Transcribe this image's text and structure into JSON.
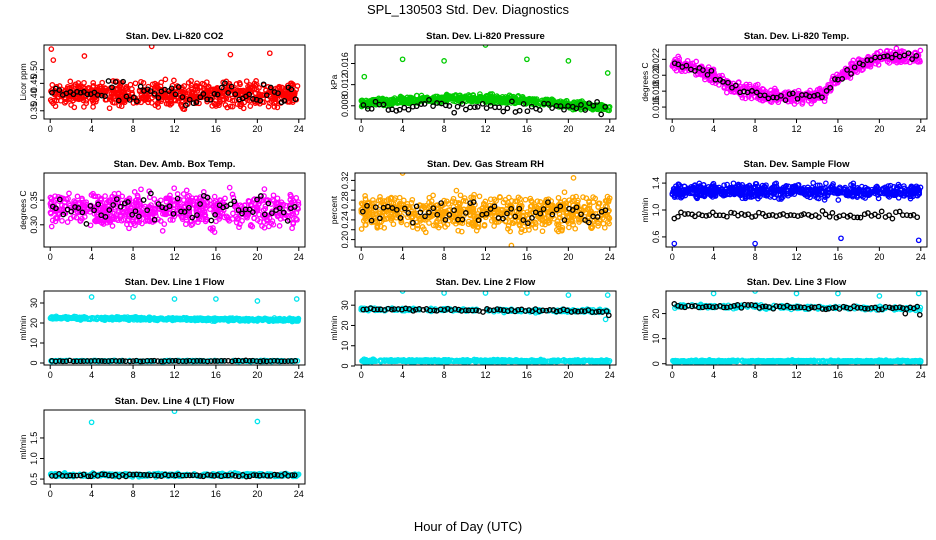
{
  "page": {
    "title": "SPL_130503  Std. Dev. Diagnostics",
    "x_title": "Hour of Day (UTC)"
  },
  "chart_data": [
    {
      "type": "scatter",
      "title": "Stan. Dev. Li-820 CO2",
      "ylabel": "Licor ppm",
      "xlim": [
        -0.6,
        24.6
      ],
      "ylim": [
        0.32,
        0.59
      ],
      "xticks": [
        0,
        4,
        8,
        12,
        16,
        20,
        24
      ],
      "yticks": [
        0.35,
        0.4,
        0.45,
        0.5
      ],
      "ytick_labels": [
        "0.35",
        "0.40",
        "0.45",
        "0.50"
      ],
      "grid": false,
      "series": [
        {
          "color": "#ff0000",
          "pattern": "dense-band",
          "band": [
            0.355,
            0.47
          ],
          "mean_start": 0.41,
          "mean_end": 0.41,
          "n": 650,
          "outliers": [
            [
              0.1,
              0.575
            ],
            [
              9.8,
              0.585
            ],
            [
              3.3,
              0.55
            ],
            [
              17.4,
              0.555
            ],
            [
              21.2,
              0.56
            ],
            [
              0.3,
              0.535
            ]
          ]
        },
        {
          "color": "#000000",
          "pattern": "hourly",
          "band": [
            0.36,
            0.47
          ],
          "mean_start": 0.41,
          "mean_end": 0.41,
          "n": 70,
          "outliers": []
        }
      ]
    },
    {
      "type": "scatter",
      "title": "Stan. Dev. Li-820 Pressure",
      "ylabel": "kPa",
      "xlim": [
        -0.6,
        24.6
      ],
      "ylim": [
        0.0055,
        0.0195
      ],
      "xticks": [
        0,
        4,
        8,
        12,
        16,
        20,
        24
      ],
      "yticks": [
        0.008,
        0.012,
        0.016
      ],
      "ytick_labels": [
        "0.008",
        "0.012",
        "0.016"
      ],
      "grid": false,
      "series": [
        {
          "color": "#00cc00",
          "pattern": "arc-band",
          "band": [
            0.0068,
            0.0105
          ],
          "mean_start": 0.0085,
          "mean_end": 0.0075,
          "n": 650,
          "outliers": [
            [
              0.3,
              0.0135
            ],
            [
              4.0,
              0.0168
            ],
            [
              8.0,
              0.0165
            ],
            [
              12.0,
              0.0195
            ],
            [
              16.0,
              0.0168
            ],
            [
              20.0,
              0.0165
            ],
            [
              23.8,
              0.0142
            ]
          ]
        },
        {
          "color": "#000000",
          "pattern": "hourly",
          "band": [
            0.0072,
            0.01
          ],
          "mean_start": 0.008,
          "mean_end": 0.0075,
          "n": 60,
          "outliers": []
        }
      ]
    },
    {
      "type": "scatter",
      "title": "Stan. Dev. Li-820 Temp.",
      "ylabel": "degrees C",
      "xlim": [
        -0.6,
        24.6
      ],
      "ylim": [
        0.0145,
        0.0238
      ],
      "xticks": [
        0,
        4,
        8,
        12,
        16,
        20,
        24
      ],
      "yticks": [
        0.016,
        0.018,
        0.02,
        0.022
      ],
      "ytick_labels": [
        "0.016",
        "0.018",
        "0.020",
        "0.022"
      ],
      "grid": false,
      "series": [
        {
          "color": "#ff00ff",
          "pattern": "trend",
          "trend": [
            [
              0,
              0.0215
            ],
            [
              3,
              0.0205
            ],
            [
              6,
              0.0183
            ],
            [
              9,
              0.0175
            ],
            [
              12,
              0.0172
            ],
            [
              14.5,
              0.0176
            ],
            [
              16,
              0.0195
            ],
            [
              18,
              0.0213
            ],
            [
              20,
              0.0223
            ],
            [
              24,
              0.0223
            ]
          ],
          "spread": 0.0013,
          "n": 550,
          "outliers": []
        },
        {
          "color": "#000000",
          "pattern": "trend-hourly",
          "trend": [
            [
              0,
              0.0215
            ],
            [
              3,
              0.0205
            ],
            [
              6,
              0.0183
            ],
            [
              9,
              0.0175
            ],
            [
              12,
              0.0172
            ],
            [
              14.5,
              0.0176
            ],
            [
              16,
              0.0195
            ],
            [
              18,
              0.0213
            ],
            [
              20,
              0.0223
            ],
            [
              24,
              0.0223
            ]
          ],
          "spread": 0.0008,
          "n": 60,
          "outliers": []
        }
      ]
    },
    {
      "type": "scatter",
      "title": "Stan. Dev. Amb. Box Temp.",
      "ylabel": "degrees C",
      "xlim": [
        -0.6,
        24.6
      ],
      "ylim": [
        0.255,
        0.405
      ],
      "xticks": [
        0,
        4,
        8,
        12,
        16,
        20,
        24
      ],
      "yticks": [
        0.3,
        0.35
      ],
      "ytick_labels": [
        "0.30",
        "0.35"
      ],
      "grid": false,
      "series": [
        {
          "color": "#ff00ff",
          "pattern": "dense-band",
          "band": [
            0.285,
            0.38
          ],
          "mean_start": 0.33,
          "mean_end": 0.33,
          "n": 650,
          "outliers": []
        },
        {
          "color": "#000000",
          "pattern": "hourly",
          "band": [
            0.3,
            0.37
          ],
          "mean_start": 0.335,
          "mean_end": 0.335,
          "n": 65,
          "outliers": []
        }
      ]
    },
    {
      "type": "scatter",
      "title": "Stan. Dev. Gas Stream RH",
      "ylabel": "percent",
      "xlim": [
        -0.6,
        24.6
      ],
      "ylim": [
        0.185,
        0.335
      ],
      "xticks": [
        0,
        4,
        8,
        12,
        16,
        20,
        24
      ],
      "yticks": [
        0.2,
        0.22,
        0.24,
        0.26,
        0.28,
        0.3,
        0.32
      ],
      "ytick_labels": [
        "0.20",
        "",
        "0.24",
        "",
        "0.28",
        "",
        "0.32"
      ],
      "grid": false,
      "series": [
        {
          "color": "#ffa500",
          "pattern": "dense-band",
          "band": [
            0.21,
            0.3
          ],
          "mean_start": 0.255,
          "mean_end": 0.255,
          "n": 700,
          "outliers": [
            [
              4.0,
              0.335
            ],
            [
              14.5,
              0.188
            ],
            [
              20.5,
              0.325
            ]
          ]
        },
        {
          "color": "#000000",
          "pattern": "hourly",
          "band": [
            0.22,
            0.29
          ],
          "mean_start": 0.255,
          "mean_end": 0.255,
          "n": 60,
          "outliers": []
        }
      ]
    },
    {
      "type": "scatter",
      "title": "Stan. Dev. Sample Flow",
      "ylabel": "ml/min",
      "xlim": [
        -0.6,
        24.6
      ],
      "ylim": [
        0.45,
        1.55
      ],
      "xticks": [
        0,
        4,
        8,
        12,
        16,
        20,
        24
      ],
      "yticks": [
        0.6,
        1.0,
        1.4
      ],
      "ytick_labels": [
        "0.6",
        "1.0",
        "1.4"
      ],
      "grid": false,
      "series": [
        {
          "color": "#0000ff",
          "pattern": "dense-band",
          "band": [
            1.15,
            1.42
          ],
          "mean_start": 1.28,
          "mean_end": 1.28,
          "n": 650,
          "outliers": [
            [
              0.2,
              0.5
            ],
            [
              8.0,
              0.5
            ],
            [
              23.8,
              0.55
            ],
            [
              16.3,
              0.58
            ]
          ]
        },
        {
          "color": "#000000",
          "pattern": "hourly",
          "band": [
            0.87,
            1.0
          ],
          "mean_start": 0.93,
          "mean_end": 0.93,
          "n": 70,
          "outliers": []
        }
      ]
    },
    {
      "type": "scatter",
      "title": "Stan. Dev. Line 1 Flow",
      "ylabel": "ml/min",
      "xlim": [
        -0.6,
        24.6
      ],
      "ylim": [
        -1,
        36
      ],
      "xticks": [
        0,
        4,
        8,
        12,
        16,
        20,
        24
      ],
      "yticks": [
        0,
        10,
        20,
        30
      ],
      "ytick_labels": [
        "0",
        "10",
        "20",
        "30"
      ],
      "grid": false,
      "series": [
        {
          "color": "#00e5ee",
          "pattern": "dense-band",
          "band": [
            21.5,
            23.5
          ],
          "mean_start": 22.5,
          "mean_end": 21.5,
          "n": 500,
          "outliers": [
            [
              4.0,
              33
            ],
            [
              8.0,
              33
            ],
            [
              12.0,
              32
            ],
            [
              16.0,
              32
            ],
            [
              20.0,
              31
            ],
            [
              23.8,
              32
            ]
          ]
        },
        {
          "color": "#00e5ee",
          "pattern": "dense-band",
          "band": [
            0.6,
            1.4
          ],
          "mean_start": 1.0,
          "mean_end": 1.0,
          "n": 200,
          "outliers": []
        },
        {
          "color": "#000000",
          "pattern": "hourly",
          "band": [
            0.7,
            1.3
          ],
          "mean_start": 1.0,
          "mean_end": 1.0,
          "n": 70,
          "outliers": []
        }
      ]
    },
    {
      "type": "scatter",
      "title": "Stan. Dev. Line 2 Flow",
      "ylabel": "ml/min",
      "xlim": [
        -0.6,
        24.6
      ],
      "ylim": [
        0.5,
        37
      ],
      "xticks": [
        0,
        4,
        8,
        12,
        16,
        20,
        24
      ],
      "yticks": [
        0,
        10,
        20,
        30
      ],
      "ytick_labels": [
        "0",
        "10",
        "20",
        "30"
      ],
      "grid": false,
      "series": [
        {
          "color": "#00e5ee",
          "pattern": "dense-band",
          "band": [
            1.8,
            3.4
          ],
          "mean_start": 2.6,
          "mean_end": 2.4,
          "n": 500,
          "outliers": [
            [
              4.0,
              37
            ],
            [
              8.0,
              36
            ],
            [
              12.0,
              36
            ],
            [
              16.0,
              36
            ],
            [
              20.0,
              35
            ],
            [
              23.8,
              35
            ],
            [
              23.6,
              23
            ]
          ]
        },
        {
          "color": "#00e5ee",
          "pattern": "dense-band",
          "band": [
            27,
            29
          ],
          "mean_start": 28,
          "mean_end": 27,
          "n": 200,
          "outliers": []
        },
        {
          "color": "#000000",
          "pattern": "hourly",
          "band": [
            27,
            29
          ],
          "mean_start": 28,
          "mean_end": 27,
          "n": 70,
          "outliers": [
            [
              23.9,
              25
            ]
          ]
        }
      ]
    },
    {
      "type": "scatter",
      "title": "Stan. Dev. Line 3 Flow",
      "ylabel": "ml/min",
      "xlim": [
        -0.6,
        24.6
      ],
      "ylim": [
        -0.5,
        29
      ],
      "xticks": [
        0,
        4,
        8,
        12,
        16,
        20,
        24
      ],
      "yticks": [
        0,
        10,
        20
      ],
      "ytick_labels": [
        "0",
        "10",
        "20"
      ],
      "grid": false,
      "series": [
        {
          "color": "#00e5ee",
          "pattern": "dense-band",
          "band": [
            0.5,
            1.5
          ],
          "mean_start": 1.0,
          "mean_end": 1.0,
          "n": 500,
          "outliers": [
            [
              4.0,
              28
            ],
            [
              8.0,
              29
            ],
            [
              12.0,
              28
            ],
            [
              16.0,
              28
            ],
            [
              20.0,
              27
            ],
            [
              23.8,
              28
            ]
          ]
        },
        {
          "color": "#00e5ee",
          "pattern": "dense-band",
          "band": [
            22,
            24
          ],
          "mean_start": 23,
          "mean_end": 22,
          "n": 200,
          "outliers": []
        },
        {
          "color": "#000000",
          "pattern": "hourly",
          "band": [
            22,
            24
          ],
          "mean_start": 23,
          "mean_end": 22,
          "n": 70,
          "outliers": [
            [
              22.5,
              20
            ],
            [
              23.9,
              19.5
            ]
          ]
        }
      ]
    },
    {
      "type": "scatter",
      "title": "Stan. Dev. Line 4 (LT) Flow",
      "ylabel": "ml/min",
      "xlim": [
        -0.6,
        24.6
      ],
      "ylim": [
        0.38,
        2.18
      ],
      "xticks": [
        0,
        4,
        8,
        12,
        16,
        20,
        24
      ],
      "yticks": [
        0.5,
        1.0,
        1.5
      ],
      "ytick_labels": [
        "0.5",
        "1.0",
        "1.5"
      ],
      "grid": false,
      "series": [
        {
          "color": "#00e5ee",
          "pattern": "dense-band",
          "band": [
            0.55,
            0.65
          ],
          "mean_start": 0.6,
          "mean_end": 0.6,
          "n": 350,
          "outliers": [
            [
              4.0,
              1.88
            ],
            [
              12.0,
              2.15
            ],
            [
              20.0,
              1.9
            ]
          ]
        },
        {
          "color": "#000000",
          "pattern": "hourly",
          "band": [
            0.55,
            0.64
          ],
          "mean_start": 0.59,
          "mean_end": 0.59,
          "n": 70,
          "outliers": []
        }
      ]
    }
  ]
}
